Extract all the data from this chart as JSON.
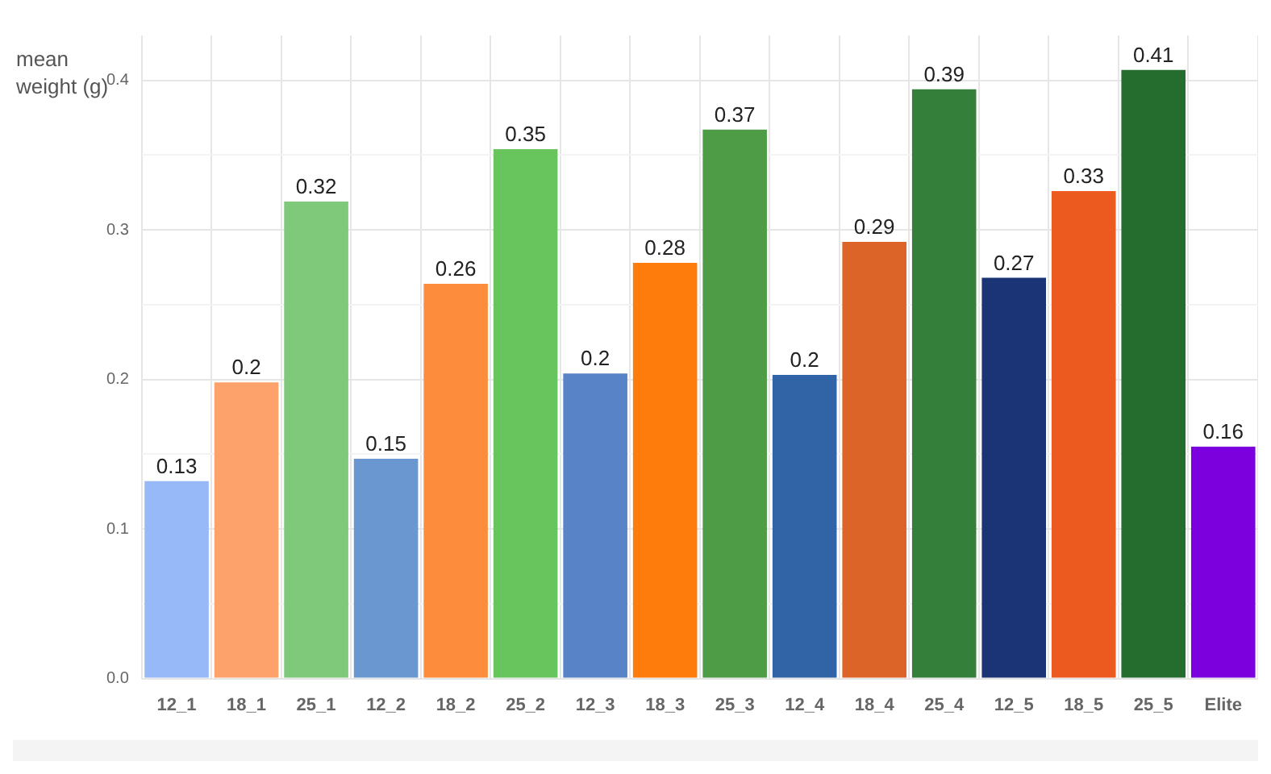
{
  "chart_data": {
    "type": "bar",
    "ylabel": "mean weight (g)",
    "categories": [
      "12_1",
      "18_1",
      "25_1",
      "12_2",
      "18_2",
      "25_2",
      "12_3",
      "18_3",
      "25_3",
      "12_4",
      "18_4",
      "25_4",
      "12_5",
      "18_5",
      "25_5",
      "Elite"
    ],
    "values": [
      0.132,
      0.198,
      0.319,
      0.147,
      0.264,
      0.354,
      0.204,
      0.278,
      0.367,
      0.203,
      0.292,
      0.394,
      0.268,
      0.326,
      0.407,
      0.155
    ],
    "value_labels": [
      "0.13",
      "0.2",
      "0.32",
      "0.15",
      "0.26",
      "0.35",
      "0.2",
      "0.28",
      "0.37",
      "0.2",
      "0.29",
      "0.39",
      "0.27",
      "0.33",
      "0.41",
      "0.16"
    ],
    "colors": [
      "#97b9f7",
      "#fda26b",
      "#7ec97a",
      "#6a97cf",
      "#fd8d3c",
      "#68c45c",
      "#5883c6",
      "#fe7c0c",
      "#4f9c47",
      "#3164a6",
      "#dd6428",
      "#347f3a",
      "#1a3475",
      "#ec5a1f",
      "#246d2f",
      "#7b00dd"
    ],
    "ylim": [
      0,
      0.43
    ],
    "yticks": [
      {
        "value": 0,
        "label": "0.0"
      },
      {
        "value": 0.05,
        "label": null
      },
      0.1,
      {
        "value": 0.15,
        "label": null
      },
      0.2,
      {
        "value": 0.25,
        "label": null
      },
      0.3,
      {
        "value": 0.35,
        "label": null
      },
      0.4
    ],
    "grid": true
  }
}
